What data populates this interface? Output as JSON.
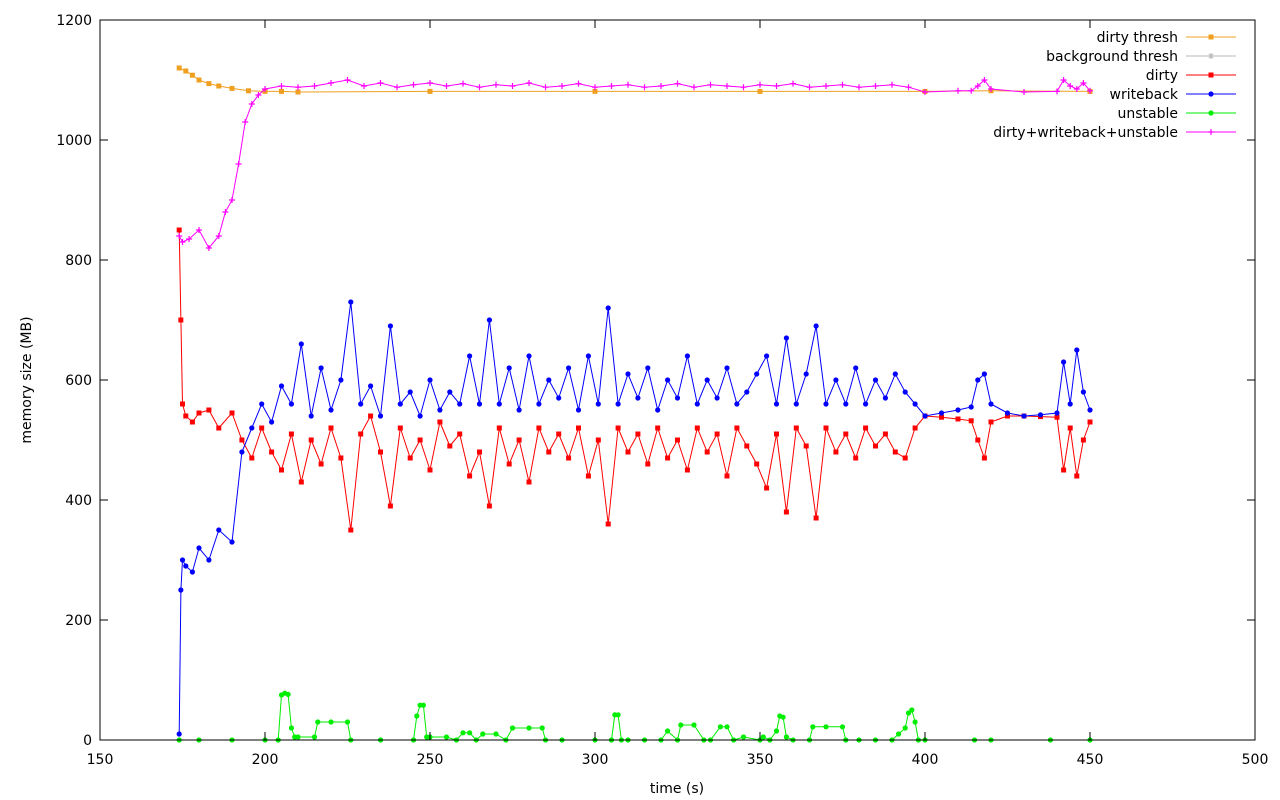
{
  "chart_data": {
    "type": "line",
    "title": "",
    "xlabel": "time (s)",
    "ylabel": "memory size (MB)",
    "xlim": [
      150,
      500
    ],
    "ylim": [
      0,
      1200
    ],
    "x_ticks": [
      150,
      200,
      250,
      300,
      350,
      400,
      450,
      500
    ],
    "y_ticks": [
      0,
      200,
      400,
      600,
      800,
      1000,
      1200
    ],
    "grid": false,
    "legend_position": "top-right",
    "series": [
      {
        "name": "dirty thresh",
        "color": "#f0a020",
        "marker": "square",
        "x": [
          174,
          176,
          178,
          180,
          183,
          186,
          190,
          195,
          200,
          205,
          210,
          250,
          300,
          350,
          400,
          420,
          450
        ],
        "y": [
          1120,
          1115,
          1108,
          1100,
          1094,
          1090,
          1086,
          1082,
          1081,
          1081,
          1080,
          1081,
          1081,
          1081,
          1081,
          1082,
          1081
        ]
      },
      {
        "name": "background thresh",
        "color": "#b8b8b8",
        "marker": "star",
        "x": [],
        "y": []
      },
      {
        "name": "dirty",
        "color": "#ff0000",
        "marker": "square",
        "x": [
          174,
          174.5,
          175,
          176,
          178,
          180,
          183,
          186,
          190,
          193,
          196,
          199,
          202,
          205,
          208,
          211,
          214,
          217,
          220,
          223,
          226,
          229,
          232,
          235,
          238,
          241,
          244,
          247,
          250,
          253,
          256,
          259,
          262,
          265,
          268,
          271,
          274,
          277,
          280,
          283,
          286,
          289,
          292,
          295,
          298,
          301,
          304,
          307,
          310,
          313,
          316,
          319,
          322,
          325,
          328,
          331,
          334,
          337,
          340,
          343,
          346,
          349,
          352,
          355,
          358,
          361,
          364,
          367,
          370,
          373,
          376,
          379,
          382,
          385,
          388,
          391,
          394,
          397,
          400,
          405,
          410,
          414,
          416,
          418,
          420,
          425,
          430,
          435,
          440,
          442,
          444,
          446,
          448,
          450
        ],
        "y": [
          850,
          700,
          560,
          540,
          530,
          545,
          550,
          520,
          545,
          500,
          470,
          520,
          480,
          450,
          510,
          430,
          500,
          460,
          520,
          470,
          350,
          510,
          540,
          480,
          390,
          520,
          470,
          500,
          450,
          530,
          490,
          510,
          440,
          480,
          390,
          520,
          460,
          500,
          430,
          520,
          480,
          510,
          470,
          520,
          440,
          500,
          360,
          520,
          480,
          510,
          460,
          520,
          470,
          500,
          450,
          520,
          480,
          510,
          440,
          520,
          490,
          460,
          420,
          510,
          380,
          520,
          490,
          370,
          520,
          480,
          510,
          470,
          520,
          490,
          510,
          480,
          470,
          520,
          540,
          538,
          535,
          532,
          500,
          470,
          530,
          540,
          540,
          539,
          538,
          450,
          520,
          440,
          500,
          530
        ]
      },
      {
        "name": "writeback",
        "color": "#0000ff",
        "marker": "circle",
        "x": [
          174,
          174.5,
          175,
          176,
          178,
          180,
          183,
          186,
          190,
          193,
          196,
          199,
          202,
          205,
          208,
          211,
          214,
          217,
          220,
          223,
          226,
          229,
          232,
          235,
          238,
          241,
          244,
          247,
          250,
          253,
          256,
          259,
          262,
          265,
          268,
          271,
          274,
          277,
          280,
          283,
          286,
          289,
          292,
          295,
          298,
          301,
          304,
          307,
          310,
          313,
          316,
          319,
          322,
          325,
          328,
          331,
          334,
          337,
          340,
          343,
          346,
          349,
          352,
          355,
          358,
          361,
          364,
          367,
          370,
          373,
          376,
          379,
          382,
          385,
          388,
          391,
          394,
          397,
          400,
          405,
          410,
          414,
          416,
          418,
          420,
          425,
          430,
          435,
          440,
          442,
          444,
          446,
          448,
          450
        ],
        "y": [
          10,
          250,
          300,
          290,
          280,
          320,
          300,
          350,
          330,
          480,
          520,
          560,
          530,
          590,
          560,
          660,
          540,
          620,
          550,
          600,
          730,
          560,
          590,
          540,
          690,
          560,
          580,
          540,
          600,
          550,
          580,
          560,
          640,
          560,
          700,
          560,
          620,
          550,
          640,
          560,
          600,
          570,
          620,
          550,
          640,
          560,
          720,
          560,
          610,
          570,
          620,
          550,
          600,
          570,
          640,
          560,
          600,
          570,
          620,
          560,
          580,
          610,
          640,
          560,
          670,
          560,
          610,
          690,
          560,
          600,
          560,
          620,
          560,
          600,
          570,
          610,
          580,
          560,
          540,
          545,
          550,
          555,
          600,
          610,
          560,
          545,
          540,
          542,
          545,
          630,
          560,
          650,
          580,
          550
        ]
      },
      {
        "name": "unstable",
        "color": "#00ee00",
        "marker": "circle",
        "x": [
          174,
          180,
          190,
          200,
          204,
          205,
          206,
          207,
          208,
          209,
          210,
          215,
          216,
          220,
          225,
          226,
          235,
          245,
          246,
          247,
          248,
          249,
          250,
          255,
          258,
          260,
          262,
          264,
          266,
          270,
          273,
          275,
          280,
          284,
          285,
          290,
          300,
          305,
          306,
          307,
          308,
          310,
          315,
          320,
          322,
          325,
          326,
          330,
          333,
          335,
          338,
          340,
          342,
          345,
          350,
          351,
          353,
          355,
          356,
          357,
          358,
          360,
          365,
          366,
          370,
          375,
          376,
          380,
          385,
          390,
          392,
          394,
          395,
          396,
          397,
          398,
          400,
          415,
          420,
          438,
          450
        ],
        "y": [
          0,
          0,
          0,
          0,
          0,
          75,
          78,
          76,
          20,
          5,
          5,
          5,
          30,
          30,
          30,
          0,
          0,
          0,
          40,
          58,
          58,
          5,
          5,
          5,
          0,
          12,
          12,
          0,
          10,
          10,
          0,
          20,
          20,
          20,
          0,
          0,
          0,
          0,
          42,
          42,
          0,
          0,
          0,
          0,
          15,
          0,
          25,
          25,
          0,
          0,
          22,
          22,
          0,
          5,
          0,
          5,
          0,
          15,
          40,
          38,
          5,
          0,
          0,
          22,
          22,
          22,
          0,
          0,
          0,
          0,
          10,
          20,
          45,
          50,
          30,
          0,
          0,
          0,
          0,
          0,
          0
        ]
      },
      {
        "name": "dirty+writeback+unstable",
        "color": "#ff00ff",
        "marker": "plus",
        "x": [
          174,
          175,
          177,
          180,
          183,
          186,
          188,
          190,
          192,
          194,
          196,
          198,
          200,
          205,
          210,
          215,
          220,
          225,
          230,
          235,
          240,
          245,
          250,
          255,
          260,
          265,
          270,
          275,
          280,
          285,
          290,
          295,
          300,
          305,
          310,
          315,
          320,
          325,
          330,
          335,
          340,
          345,
          350,
          355,
          360,
          365,
          370,
          375,
          380,
          385,
          390,
          395,
          400,
          410,
          414,
          416,
          418,
          420,
          430,
          440,
          442,
          444,
          446,
          448,
          450
        ],
        "y": [
          840,
          830,
          835,
          850,
          820,
          840,
          880,
          900,
          960,
          1030,
          1060,
          1075,
          1085,
          1090,
          1088,
          1090,
          1095,
          1100,
          1090,
          1095,
          1088,
          1092,
          1095,
          1090,
          1094,
          1088,
          1092,
          1090,
          1095,
          1088,
          1090,
          1094,
          1088,
          1090,
          1092,
          1088,
          1090,
          1094,
          1088,
          1092,
          1090,
          1088,
          1092,
          1090,
          1094,
          1088,
          1090,
          1092,
          1088,
          1090,
          1092,
          1088,
          1080,
          1082,
          1082,
          1090,
          1100,
          1085,
          1080,
          1081,
          1100,
          1090,
          1085,
          1095,
          1082
        ]
      }
    ]
  }
}
